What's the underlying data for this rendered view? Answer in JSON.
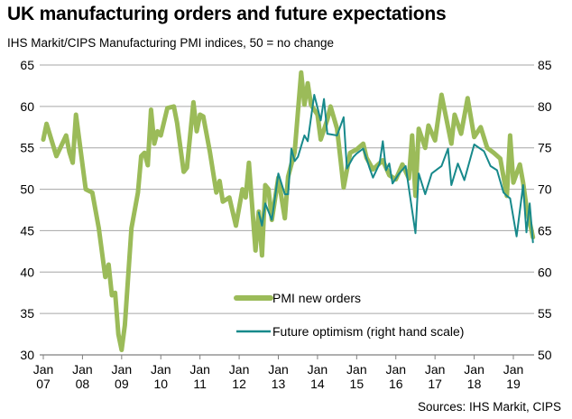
{
  "title": "UK manufacturing orders and future expectations",
  "subtitle": "IHS Markit/CIPS Manufacturing PMI indices, 50 = no change",
  "source": "Sources: IHS Markit, CIPS",
  "colors": {
    "pmi": "#9bbb59",
    "optimism": "#17898b",
    "grid": "#a6a6a6"
  },
  "chart_data": {
    "type": "line",
    "title": "UK manufacturing orders and future expectations",
    "grid": true,
    "legend": "bottom-center",
    "x_tick_labels": [
      {
        "month": "Jan",
        "year": "07"
      },
      {
        "month": "Jan",
        "year": "08"
      },
      {
        "month": "Jan",
        "year": "09"
      },
      {
        "month": "Jan",
        "year": "10"
      },
      {
        "month": "Jan",
        "year": "11"
      },
      {
        "month": "Jan",
        "year": "12"
      },
      {
        "month": "Jan",
        "year": "13"
      },
      {
        "month": "Jan",
        "year": "14"
      },
      {
        "month": "Jan",
        "year": "15"
      },
      {
        "month": "Jan",
        "year": "16"
      },
      {
        "month": "Jan",
        "year": "17"
      },
      {
        "month": "Jan",
        "year": "18"
      },
      {
        "month": "Jan",
        "year": "19"
      }
    ],
    "xlim": [
      "2007-01",
      "2019-07"
    ],
    "y_left": {
      "lim": [
        30,
        65
      ],
      "ticks": [
        "30",
        "35",
        "40",
        "45",
        "50",
        "55",
        "60",
        "65"
      ]
    },
    "y_right": {
      "lim": [
        50,
        85
      ],
      "ticks": [
        "50",
        "55",
        "60",
        "65",
        "70",
        "75",
        "80",
        "85"
      ]
    },
    "series": [
      {
        "name": "PMI new orders",
        "axis": "left",
        "points": [
          [
            "2007-01",
            56.0
          ],
          [
            "2007-02",
            57.9
          ],
          [
            "2007-05",
            54.0
          ],
          [
            "2007-08",
            56.5
          ],
          [
            "2007-09",
            54.5
          ],
          [
            "2007-10",
            53.2
          ],
          [
            "2007-11",
            59.0
          ],
          [
            "2008-02",
            50.0
          ],
          [
            "2008-04",
            49.6
          ],
          [
            "2008-06",
            45.3
          ],
          [
            "2008-08",
            39.4
          ],
          [
            "2008-09",
            40.9
          ],
          [
            "2008-10",
            37.2
          ],
          [
            "2008-11",
            37.5
          ],
          [
            "2008-12",
            32.5
          ],
          [
            "2009-01",
            30.6
          ],
          [
            "2009-02",
            33.6
          ],
          [
            "2009-04",
            45.3
          ],
          [
            "2009-06",
            49.6
          ],
          [
            "2009-07",
            54.0
          ],
          [
            "2009-08",
            54.4
          ],
          [
            "2009-09",
            52.9
          ],
          [
            "2009-10",
            59.6
          ],
          [
            "2009-11",
            55.5
          ],
          [
            "2009-12",
            57.0
          ],
          [
            "2010-01",
            56.5
          ],
          [
            "2010-03",
            59.8
          ],
          [
            "2010-05",
            60.0
          ],
          [
            "2010-06",
            58.0
          ],
          [
            "2010-08",
            52.1
          ],
          [
            "2010-09",
            52.6
          ],
          [
            "2010-11",
            60.5
          ],
          [
            "2010-12",
            57.0
          ],
          [
            "2011-01",
            59.0
          ],
          [
            "2011-02",
            58.8
          ],
          [
            "2011-04",
            54.6
          ],
          [
            "2011-06",
            49.6
          ],
          [
            "2011-07",
            51.0
          ],
          [
            "2011-08",
            48.5
          ],
          [
            "2011-10",
            49.0
          ],
          [
            "2011-12",
            45.6
          ],
          [
            "2012-02",
            50.0
          ],
          [
            "2012-03",
            49.0
          ],
          [
            "2012-04",
            53.2
          ],
          [
            "2012-06",
            42.6
          ],
          [
            "2012-07",
            47.3
          ],
          [
            "2012-08",
            42.0
          ],
          [
            "2012-09",
            50.5
          ],
          [
            "2012-10",
            50.0
          ],
          [
            "2012-11",
            46.3
          ],
          [
            "2013-01",
            51.4
          ],
          [
            "2013-03",
            46.5
          ],
          [
            "2013-04",
            51.5
          ],
          [
            "2013-06",
            54.5
          ],
          [
            "2013-08",
            64.1
          ],
          [
            "2013-09",
            60.2
          ],
          [
            "2013-10",
            62.8
          ],
          [
            "2013-11",
            60.2
          ],
          [
            "2014-01",
            59.0
          ],
          [
            "2014-02",
            56.0
          ],
          [
            "2014-04",
            58.4
          ],
          [
            "2014-05",
            60.0
          ],
          [
            "2014-07",
            57.3
          ],
          [
            "2014-09",
            50.2
          ],
          [
            "2014-11",
            54.4
          ],
          [
            "2015-01",
            54.8
          ],
          [
            "2015-03",
            55.5
          ],
          [
            "2015-04",
            53.8
          ],
          [
            "2015-06",
            52.4
          ],
          [
            "2015-09",
            53.5
          ],
          [
            "2015-11",
            51.7
          ],
          [
            "2016-01",
            51.2
          ],
          [
            "2016-03",
            53.0
          ],
          [
            "2016-05",
            51.3
          ],
          [
            "2016-06",
            56.5
          ],
          [
            "2016-07",
            49.2
          ],
          [
            "2016-08",
            57.3
          ],
          [
            "2016-10",
            55.0
          ],
          [
            "2016-11",
            57.7
          ],
          [
            "2017-01",
            55.9
          ],
          [
            "2017-03",
            61.4
          ],
          [
            "2017-06",
            55.5
          ],
          [
            "2017-07",
            59.0
          ],
          [
            "2017-09",
            56.7
          ],
          [
            "2017-11",
            61.0
          ],
          [
            "2018-01",
            56.3
          ],
          [
            "2018-03",
            57.5
          ],
          [
            "2018-05",
            55.0
          ],
          [
            "2018-07",
            54.4
          ],
          [
            "2018-09",
            53.7
          ],
          [
            "2018-11",
            49.2
          ],
          [
            "2018-12",
            56.5
          ],
          [
            "2019-01",
            50.8
          ],
          [
            "2019-03",
            53.0
          ],
          [
            "2019-04",
            50.8
          ],
          [
            "2019-05",
            47.9
          ],
          [
            "2019-07",
            44.2
          ]
        ]
      },
      {
        "name": "Future optimism (right hand scale)",
        "axis": "right",
        "points": [
          [
            "2012-07",
            67.2
          ],
          [
            "2012-08",
            65.6
          ],
          [
            "2012-09",
            68.3
          ],
          [
            "2012-11",
            66.3
          ],
          [
            "2013-01",
            71.9
          ],
          [
            "2013-03",
            69.4
          ],
          [
            "2013-04",
            69.4
          ],
          [
            "2013-05",
            74.9
          ],
          [
            "2013-06",
            73.4
          ],
          [
            "2013-07",
            73.9
          ],
          [
            "2013-09",
            76.5
          ],
          [
            "2013-10",
            75.8
          ],
          [
            "2013-12",
            81.4
          ],
          [
            "2014-02",
            78.3
          ],
          [
            "2014-03",
            80.9
          ],
          [
            "2014-04",
            76.7
          ],
          [
            "2014-07",
            76.5
          ],
          [
            "2014-09",
            78.7
          ],
          [
            "2014-10",
            72.5
          ],
          [
            "2014-12",
            73.9
          ],
          [
            "2015-01",
            74.3
          ],
          [
            "2015-03",
            74.9
          ],
          [
            "2015-05",
            72.5
          ],
          [
            "2015-06",
            71.4
          ],
          [
            "2015-08",
            73.1
          ],
          [
            "2015-09",
            75.8
          ],
          [
            "2015-10",
            72.3
          ],
          [
            "2015-11",
            73.1
          ],
          [
            "2015-12",
            70.7
          ],
          [
            "2016-02",
            71.9
          ],
          [
            "2016-04",
            72.8
          ],
          [
            "2016-07",
            64.7
          ],
          [
            "2016-08",
            71.9
          ],
          [
            "2016-10",
            69.4
          ],
          [
            "2016-12",
            71.9
          ],
          [
            "2017-02",
            72.5
          ],
          [
            "2017-03",
            72.8
          ],
          [
            "2017-05",
            74.9
          ],
          [
            "2017-06",
            70.5
          ],
          [
            "2017-08",
            73.1
          ],
          [
            "2017-10",
            71.1
          ],
          [
            "2018-01",
            75.4
          ],
          [
            "2018-04",
            74.6
          ],
          [
            "2018-06",
            72.8
          ],
          [
            "2018-08",
            72.3
          ],
          [
            "2018-10",
            69.6
          ],
          [
            "2018-11",
            69.2
          ],
          [
            "2018-12",
            68.9
          ],
          [
            "2019-02",
            64.3
          ],
          [
            "2019-04",
            70.5
          ],
          [
            "2019-05",
            64.8
          ],
          [
            "2019-06",
            68.3
          ],
          [
            "2019-07",
            63.6
          ]
        ]
      }
    ]
  }
}
